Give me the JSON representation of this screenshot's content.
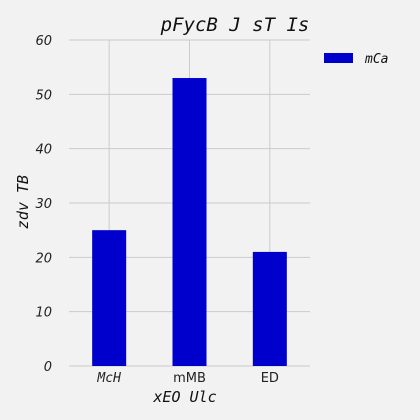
{
  "chart_data": {
    "type": "bar",
    "title": "pFycB J sT Is",
    "xlabel": "xEO Ulc",
    "ylabel": "zdv TB",
    "categories": [
      "McH",
      "mMB",
      "ED"
    ],
    "series": [
      {
        "name": "mCa",
        "values": [
          25,
          53,
          21
        ],
        "color": "#0000cc"
      }
    ],
    "ylim": [
      0,
      60
    ],
    "yticks": [
      0,
      10,
      20,
      30,
      40,
      50,
      60
    ],
    "grid": true,
    "legend_position": "top-right",
    "background": "#f2f2f2"
  }
}
